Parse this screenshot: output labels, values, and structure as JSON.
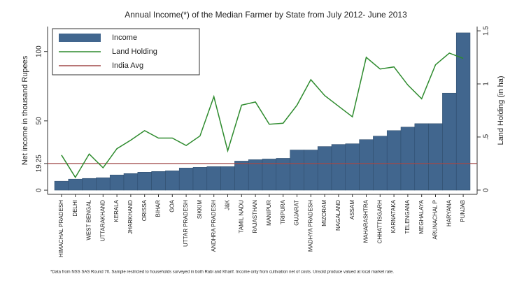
{
  "chart_data": {
    "type": "bar",
    "title": "Annual Income(*) of the Median Farmer by State from July 2012- June 2013",
    "y_label": "Net income in thousand Rupees",
    "y2_label": "Land Holding (in ha)",
    "footnote": "*Data from NSS SAS Round 70. Sample restricted to households surveyed in both Rabi and Kharif. Income only from cultivation net of costs. Unsold produce valued at local market rate.",
    "categories": [
      "HIMACHAL PRADESH",
      "DELHI",
      "WEST BENGAL",
      "UTTARAKHAND",
      "KERALA",
      "JHARKHAND",
      "ORISSA",
      "BIHAR",
      "GOA",
      "UTTAR PRADESH",
      "SIKKIM",
      "ANDHRA PRADESH",
      "J&K",
      "TAMIL NADU",
      "RAJASTHAN",
      "MANIPUR",
      "TRIPURA",
      "GUJARAT",
      "MADHYA PRADESH",
      "MIZORAM",
      "NAGALAND",
      "ASSAM",
      "MAHARASHTRA",
      "CHHATTISGARH",
      "KARNATAKA",
      "TELENGANA",
      "MEGHALAYA",
      "ARUNACHAL P",
      "HARYANA",
      "PUNJAB"
    ],
    "series": [
      {
        "name": "Income",
        "type": "bar",
        "color": "#41668e",
        "values": [
          6.5,
          8,
          8.5,
          9,
          11,
          12,
          13,
          13.5,
          14,
          16,
          16.5,
          17,
          17,
          21,
          22,
          22.5,
          23,
          29,
          29,
          31.5,
          33,
          33.5,
          36.5,
          39,
          43,
          45.5,
          48,
          48,
          70,
          113.5
        ]
      },
      {
        "name": "Land Holding",
        "type": "line",
        "axis": "y2",
        "color": "#2e8b2e",
        "values": [
          0.33,
          0.12,
          0.34,
          0.21,
          0.39,
          0.47,
          0.56,
          0.49,
          0.49,
          0.42,
          0.51,
          0.88,
          0.37,
          0.8,
          0.83,
          0.62,
          0.63,
          0.8,
          1.04,
          0.89,
          0.79,
          0.69,
          1.25,
          1.14,
          1.16,
          0.99,
          0.86,
          1.18,
          1.29,
          1.24
        ]
      }
    ],
    "reference_line": {
      "name": "India Avg",
      "color": "#a04848",
      "value": 19.25
    },
    "ylim": [
      -3,
      118
    ],
    "yticks": [
      0,
      19.25,
      50,
      100
    ],
    "y2lim": [
      -0.04,
      1.54
    ],
    "y2ticks": [
      0,
      {
        "value": 0.5,
        "label": ".5"
      },
      1,
      1.5
    ],
    "legend": "top-left"
  }
}
